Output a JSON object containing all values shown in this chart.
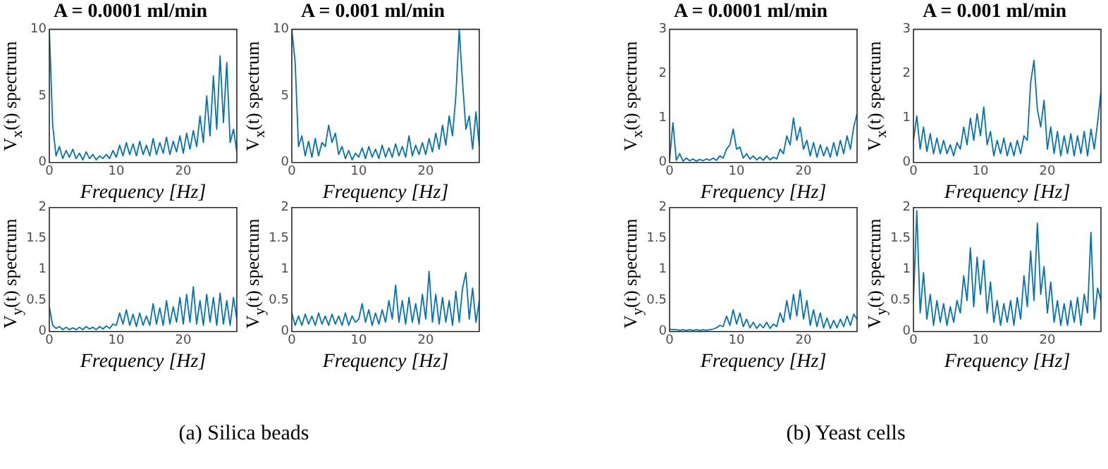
{
  "chart_data": [
    {
      "type": "line",
      "title": "A = 0.0001 ml/min",
      "xlabel": "Frequency [Hz]",
      "ylabel": "V$_{x}$(t) spectrum",
      "xlim": [
        0,
        28
      ],
      "xticks": [
        0,
        10,
        20
      ],
      "ylim": [
        0,
        10
      ],
      "yticks": [
        0,
        5,
        10
      ],
      "x": [
        0,
        0.5,
        1,
        1.5,
        2,
        2.5,
        3,
        3.5,
        4,
        4.5,
        5,
        5.5,
        6,
        6.5,
        7,
        7.5,
        8,
        8.5,
        9,
        9.5,
        10,
        10.5,
        11,
        11.5,
        12,
        12.5,
        13,
        13.5,
        14,
        14.5,
        15,
        15.5,
        16,
        16.5,
        17,
        17.5,
        18,
        18.5,
        19,
        19.5,
        20,
        20.5,
        21,
        21.5,
        22,
        22.5,
        23,
        23.5,
        24,
        24.5,
        25,
        25.5,
        26,
        26.5,
        27,
        27.5,
        28
      ],
      "series": [
        {
          "color": "#0072bd",
          "values": [
            10,
            2.8,
            0.5,
            1.2,
            0.3,
            0.9,
            0.4,
            1,
            0.3,
            0.7,
            0.2,
            0.8,
            0.3,
            0.6,
            0.2,
            0.5,
            0.3,
            0.6,
            0.3,
            0.9,
            0.4,
            1.3,
            0.5,
            1.5,
            0.6,
            1.4,
            0.5,
            1.6,
            0.6,
            1.3,
            0.5,
            1.8,
            0.6,
            1.5,
            0.7,
            1.9,
            0.6,
            1.6,
            0.8,
            2,
            0.7,
            2.2,
            1,
            2.4,
            1.2,
            3.5,
            1.5,
            5,
            2,
            6.5,
            2.5,
            8,
            3,
            7.5,
            1.5,
            2.5,
            0.8
          ]
        }
      ]
    },
    {
      "type": "line",
      "title": "A = 0.001 ml/min",
      "xlabel": "Frequency [Hz]",
      "ylabel": "V$_{x}$(t) spectrum",
      "xlim": [
        0,
        28
      ],
      "xticks": [
        0,
        10,
        20
      ],
      "ylim": [
        0,
        10
      ],
      "yticks": [
        0,
        5,
        10
      ],
      "x": [
        0,
        0.5,
        1,
        1.5,
        2,
        2.5,
        3,
        3.5,
        4,
        4.5,
        5,
        5.5,
        6,
        6.5,
        7,
        7.5,
        8,
        8.5,
        9,
        9.5,
        10,
        10.5,
        11,
        11.5,
        12,
        12.5,
        13,
        13.5,
        14,
        14.5,
        15,
        15.5,
        16,
        16.5,
        17,
        17.5,
        18,
        18.5,
        19,
        19.5,
        20,
        20.5,
        21,
        21.5,
        22,
        22.5,
        23,
        23.5,
        24,
        24.5,
        25,
        25.5,
        26,
        26.5,
        27,
        27.5,
        28
      ],
      "series": [
        {
          "color": "#0072bd",
          "values": [
            10,
            7.5,
            1.2,
            2,
            0.5,
            1.6,
            0.4,
            1.8,
            0.5,
            1.5,
            1.2,
            2.8,
            1.5,
            2.2,
            0.6,
            1.2,
            0.3,
            0.9,
            0.2,
            0.7,
            0.4,
            1.1,
            0.3,
            1.2,
            0.4,
            1,
            0.3,
            1.3,
            0.4,
            1.1,
            0.4,
            1.4,
            0.5,
            1.2,
            0.4,
            2,
            0.5,
            1.3,
            0.6,
            1.5,
            0.6,
            1.8,
            0.8,
            2.2,
            1,
            2.8,
            1.3,
            3.5,
            2,
            5,
            10,
            6,
            2.5,
            3.5,
            1,
            3.8,
            1.2
          ]
        }
      ]
    },
    {
      "type": "line",
      "xlabel": "Frequency [Hz]",
      "ylabel": "V$_{y}$(t) spectrum",
      "xlim": [
        0,
        28
      ],
      "xticks": [
        0,
        10,
        20
      ],
      "ylim": [
        0,
        2
      ],
      "yticks": [
        0,
        0.5,
        1,
        1.5,
        2
      ],
      "annotations": [
        "(a) Silica beads"
      ],
      "x": [
        0,
        0.5,
        1,
        1.5,
        2,
        2.5,
        3,
        3.5,
        4,
        4.5,
        5,
        5.5,
        6,
        6.5,
        7,
        7.5,
        8,
        8.5,
        9,
        9.5,
        10,
        10.5,
        11,
        11.5,
        12,
        12.5,
        13,
        13.5,
        14,
        14.5,
        15,
        15.5,
        16,
        16.5,
        17,
        17.5,
        18,
        18.5,
        19,
        19.5,
        20,
        20.5,
        21,
        21.5,
        22,
        22.5,
        23,
        23.5,
        24,
        24.5,
        25,
        25.5,
        26,
        26.5,
        27,
        27.5,
        28
      ],
      "series": [
        {
          "color": "#0072bd",
          "values": [
            0.4,
            0.1,
            0.05,
            0.08,
            0.03,
            0.07,
            0.03,
            0.06,
            0.03,
            0.07,
            0.03,
            0.08,
            0.04,
            0.07,
            0.03,
            0.08,
            0.04,
            0.09,
            0.05,
            0.12,
            0.1,
            0.3,
            0.12,
            0.35,
            0.1,
            0.28,
            0.08,
            0.3,
            0.1,
            0.25,
            0.1,
            0.45,
            0.12,
            0.38,
            0.1,
            0.5,
            0.12,
            0.4,
            0.15,
            0.55,
            0.12,
            0.6,
            0.15,
            0.72,
            0.12,
            0.5,
            0.1,
            0.6,
            0.15,
            0.55,
            0.1,
            0.62,
            0.12,
            0.5,
            0.1,
            0.55,
            0.2
          ]
        }
      ]
    },
    {
      "type": "line",
      "xlabel": "Frequency [Hz]",
      "ylabel": "V$_{y}$(t) spectrum",
      "xlim": [
        0,
        28
      ],
      "xticks": [
        0,
        10,
        20
      ],
      "ylim": [
        0,
        2
      ],
      "yticks": [
        0,
        0.5,
        1,
        1.5,
        2
      ],
      "x": [
        0,
        0.5,
        1,
        1.5,
        2,
        2.5,
        3,
        3.5,
        4,
        4.5,
        5,
        5.5,
        6,
        6.5,
        7,
        7.5,
        8,
        8.5,
        9,
        9.5,
        10,
        10.5,
        11,
        11.5,
        12,
        12.5,
        13,
        13.5,
        14,
        14.5,
        15,
        15.5,
        16,
        16.5,
        17,
        17.5,
        18,
        18.5,
        19,
        19.5,
        20,
        20.5,
        21,
        21.5,
        22,
        22.5,
        23,
        23.5,
        24,
        24.5,
        25,
        25.5,
        26,
        26.5,
        27,
        27.5,
        28
      ],
      "series": [
        {
          "color": "#0072bd",
          "values": [
            0.3,
            0.1,
            0.25,
            0.1,
            0.28,
            0.12,
            0.25,
            0.1,
            0.3,
            0.12,
            0.25,
            0.1,
            0.28,
            0.12,
            0.25,
            0.1,
            0.3,
            0.1,
            0.25,
            0.15,
            0.2,
            0.45,
            0.15,
            0.35,
            0.1,
            0.3,
            0.12,
            0.35,
            0.15,
            0.5,
            0.2,
            0.75,
            0.15,
            0.5,
            0.12,
            0.55,
            0.15,
            0.45,
            0.12,
            0.6,
            0.2,
            0.97,
            0.15,
            0.6,
            0.12,
            0.55,
            0.15,
            0.5,
            0.1,
            0.65,
            0.15,
            0.7,
            0.95,
            0.2,
            0.7,
            0.15,
            0.5
          ]
        }
      ]
    },
    {
      "type": "line",
      "title": "A = 0.0001 ml/min",
      "xlabel": "Frequency [Hz]",
      "ylabel": "V$_{x}$(t) spectrum",
      "xlim": [
        0,
        28
      ],
      "xticks": [
        0,
        10,
        20
      ],
      "ylim": [
        0,
        3
      ],
      "yticks": [
        0,
        1,
        2,
        3
      ],
      "x": [
        0,
        0.5,
        1,
        1.5,
        2,
        2.5,
        3,
        3.5,
        4,
        4.5,
        5,
        5.5,
        6,
        6.5,
        7,
        7.5,
        8,
        8.5,
        9,
        9.5,
        10,
        10.5,
        11,
        11.5,
        12,
        12.5,
        13,
        13.5,
        14,
        14.5,
        15,
        15.5,
        16,
        16.5,
        17,
        17.5,
        18,
        18.5,
        19,
        19.5,
        20,
        20.5,
        21,
        21.5,
        22,
        22.5,
        23,
        23.5,
        24,
        24.5,
        25,
        25.5,
        26,
        26.5,
        27,
        27.5,
        28
      ],
      "series": [
        {
          "color": "#0072bd",
          "values": [
            0.05,
            0.9,
            0.05,
            0.2,
            0.03,
            0.1,
            0.04,
            0.08,
            0.03,
            0.07,
            0.04,
            0.08,
            0.05,
            0.1,
            0.05,
            0.15,
            0.1,
            0.3,
            0.4,
            0.75,
            0.3,
            0.35,
            0.1,
            0.2,
            0.08,
            0.15,
            0.06,
            0.12,
            0.05,
            0.15,
            0.06,
            0.12,
            0.08,
            0.3,
            0.2,
            0.6,
            0.4,
            1,
            0.5,
            0.8,
            0.3,
            0.5,
            0.15,
            0.45,
            0.12,
            0.4,
            0.15,
            0.35,
            0.12,
            0.45,
            0.15,
            0.5,
            0.2,
            0.6,
            0.3,
            0.8,
            1.1
          ]
        }
      ]
    },
    {
      "type": "line",
      "title": "A = 0.001 ml/min",
      "xlabel": "Frequency [Hz]",
      "ylabel": "V$_{x}$(t) spectrum",
      "xlim": [
        0,
        28
      ],
      "xticks": [
        0,
        10,
        20
      ],
      "ylim": [
        0,
        3
      ],
      "yticks": [
        0,
        1,
        2,
        3
      ],
      "x": [
        0,
        0.5,
        1,
        1.5,
        2,
        2.5,
        3,
        3.5,
        4,
        4.5,
        5,
        5.5,
        6,
        6.5,
        7,
        7.5,
        8,
        8.5,
        9,
        9.5,
        10,
        10.5,
        11,
        11.5,
        12,
        12.5,
        13,
        13.5,
        14,
        14.5,
        15,
        15.5,
        16,
        16.5,
        17,
        17.5,
        18,
        18.5,
        19,
        19.5,
        20,
        20.5,
        21,
        21.5,
        22,
        22.5,
        23,
        23.5,
        24,
        24.5,
        25,
        25.5,
        26,
        26.5,
        27,
        27.5,
        28
      ],
      "series": [
        {
          "color": "#0072bd",
          "values": [
            0.5,
            1.05,
            0.3,
            0.8,
            0.25,
            0.65,
            0.2,
            0.55,
            0.2,
            0.5,
            0.2,
            0.4,
            0.15,
            0.45,
            0.3,
            0.8,
            0.4,
            1,
            0.5,
            1.1,
            0.6,
            1.25,
            0.4,
            0.7,
            0.15,
            0.5,
            0.2,
            0.55,
            0.15,
            0.45,
            0.15,
            0.5,
            0.2,
            0.6,
            0.5,
            1.8,
            2.3,
            1.2,
            0.8,
            1.4,
            0.3,
            0.8,
            0.2,
            0.7,
            0.15,
            0.6,
            0.2,
            0.65,
            0.15,
            0.6,
            0.2,
            0.7,
            0.15,
            0.75,
            0.3,
            0.9,
            1.6
          ]
        }
      ]
    },
    {
      "type": "line",
      "xlabel": "Frequency [Hz]",
      "ylabel": "V$_{y}$(t) spectrum",
      "xlim": [
        0,
        28
      ],
      "xticks": [
        0,
        10,
        20
      ],
      "ylim": [
        0,
        2
      ],
      "yticks": [
        0,
        0.5,
        1,
        1.5,
        2
      ],
      "annotations": [
        "(b) Yeast cells"
      ],
      "x": [
        0,
        0.5,
        1,
        1.5,
        2,
        2.5,
        3,
        3.5,
        4,
        4.5,
        5,
        5.5,
        6,
        6.5,
        7,
        7.5,
        8,
        8.5,
        9,
        9.5,
        10,
        10.5,
        11,
        11.5,
        12,
        12.5,
        13,
        13.5,
        14,
        14.5,
        15,
        15.5,
        16,
        16.5,
        17,
        17.5,
        18,
        18.5,
        19,
        19.5,
        20,
        20.5,
        21,
        21.5,
        22,
        22.5,
        23,
        23.5,
        24,
        24.5,
        25,
        25.5,
        26,
        26.5,
        27,
        27.5,
        28
      ],
      "series": [
        {
          "color": "#0072bd",
          "values": [
            0.04,
            0.03,
            0.03,
            0.02,
            0.03,
            0.02,
            0.03,
            0.02,
            0.03,
            0.02,
            0.03,
            0.02,
            0.03,
            0.04,
            0.06,
            0.1,
            0.08,
            0.25,
            0.1,
            0.35,
            0.12,
            0.3,
            0.08,
            0.2,
            0.06,
            0.15,
            0.05,
            0.12,
            0.06,
            0.15,
            0.05,
            0.12,
            0.08,
            0.3,
            0.15,
            0.5,
            0.2,
            0.6,
            0.25,
            0.67,
            0.2,
            0.5,
            0.1,
            0.35,
            0.08,
            0.3,
            0.06,
            0.22,
            0.05,
            0.18,
            0.06,
            0.2,
            0.08,
            0.25,
            0.1,
            0.28,
            0.2
          ]
        }
      ]
    },
    {
      "type": "line",
      "xlabel": "Frequency [Hz]",
      "ylabel": "V$_{y}$(t) spectrum",
      "xlim": [
        0,
        28
      ],
      "xticks": [
        0,
        10,
        20
      ],
      "ylim": [
        0,
        2
      ],
      "yticks": [
        0,
        0.5,
        1,
        1.5,
        2
      ],
      "x": [
        0,
        0.5,
        1,
        1.5,
        2,
        2.5,
        3,
        3.5,
        4,
        4.5,
        5,
        5.5,
        6,
        6.5,
        7,
        7.5,
        8,
        8.5,
        9,
        9.5,
        10,
        10.5,
        11,
        11.5,
        12,
        12.5,
        13,
        13.5,
        14,
        14.5,
        15,
        15.5,
        16,
        16.5,
        17,
        17.5,
        18,
        18.5,
        19,
        19.5,
        20,
        20.5,
        21,
        21.5,
        22,
        22.5,
        23,
        23.5,
        24,
        24.5,
        25,
        25.5,
        26,
        26.5,
        27,
        27.5,
        28
      ],
      "series": [
        {
          "color": "#0072bd",
          "values": [
            0.5,
            1.95,
            0.3,
            0.95,
            0.2,
            0.6,
            0.1,
            0.5,
            0.15,
            0.45,
            0.1,
            0.4,
            0.15,
            0.5,
            0.3,
            0.9,
            0.5,
            1.35,
            0.4,
            1.2,
            0.6,
            1.15,
            0.3,
            0.8,
            0.15,
            0.5,
            0.1,
            0.45,
            0.15,
            0.5,
            0.1,
            0.55,
            0.2,
            0.9,
            0.4,
            1.3,
            0.5,
            1.75,
            0.6,
            1.05,
            0.3,
            0.8,
            0.15,
            0.5,
            0.1,
            0.45,
            0.1,
            0.5,
            0.15,
            0.55,
            0.1,
            0.6,
            0.3,
            1.6,
            0.2,
            0.7,
            0.5
          ]
        }
      ]
    }
  ]
}
